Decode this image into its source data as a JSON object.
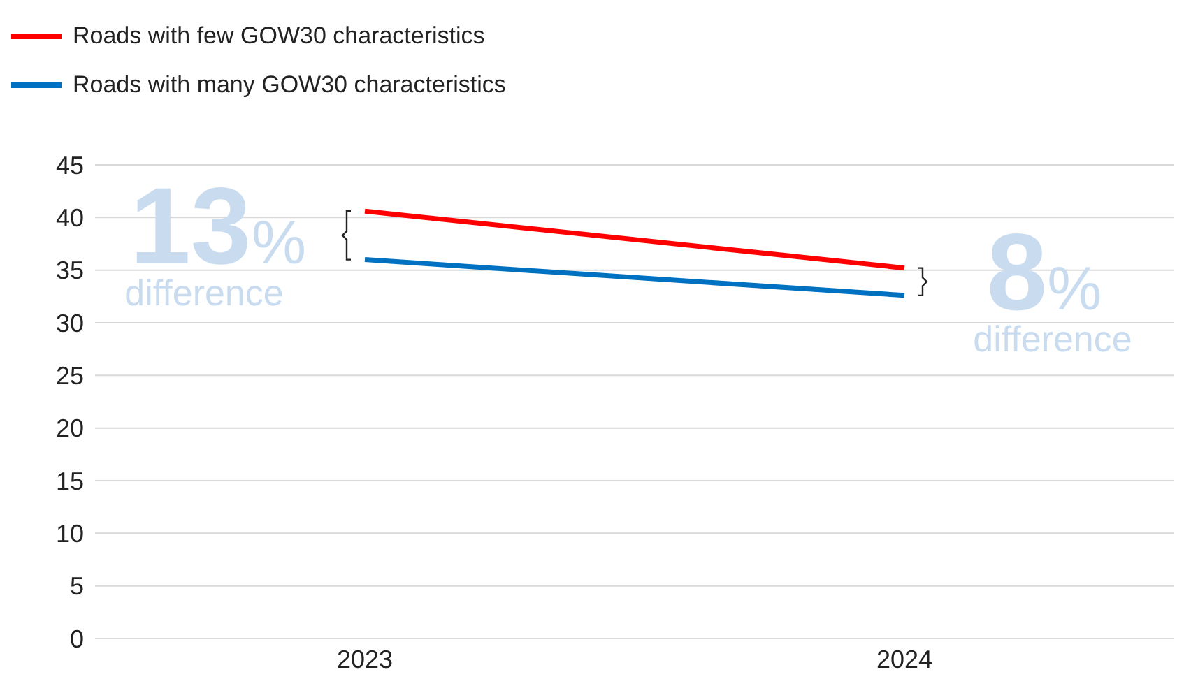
{
  "chart_data": {
    "type": "line",
    "categories": [
      "2023",
      "2024"
    ],
    "series": [
      {
        "name": "Roads with few GOW30 characteristics",
        "color": "#ff0000",
        "values": [
          40.6,
          35.2
        ]
      },
      {
        "name": "Roads with many GOW30 characteristics",
        "color": "#0070c0",
        "values": [
          36.0,
          32.6
        ]
      }
    ],
    "ylim": [
      0,
      45
    ],
    "yticks": [
      0,
      5,
      10,
      15,
      20,
      25,
      30,
      35,
      40,
      45
    ],
    "grid": "y",
    "legend": "top left",
    "marker": "none",
    "line_style": "solid",
    "annotations": [
      "13% difference",
      "8% difference"
    ]
  }
}
